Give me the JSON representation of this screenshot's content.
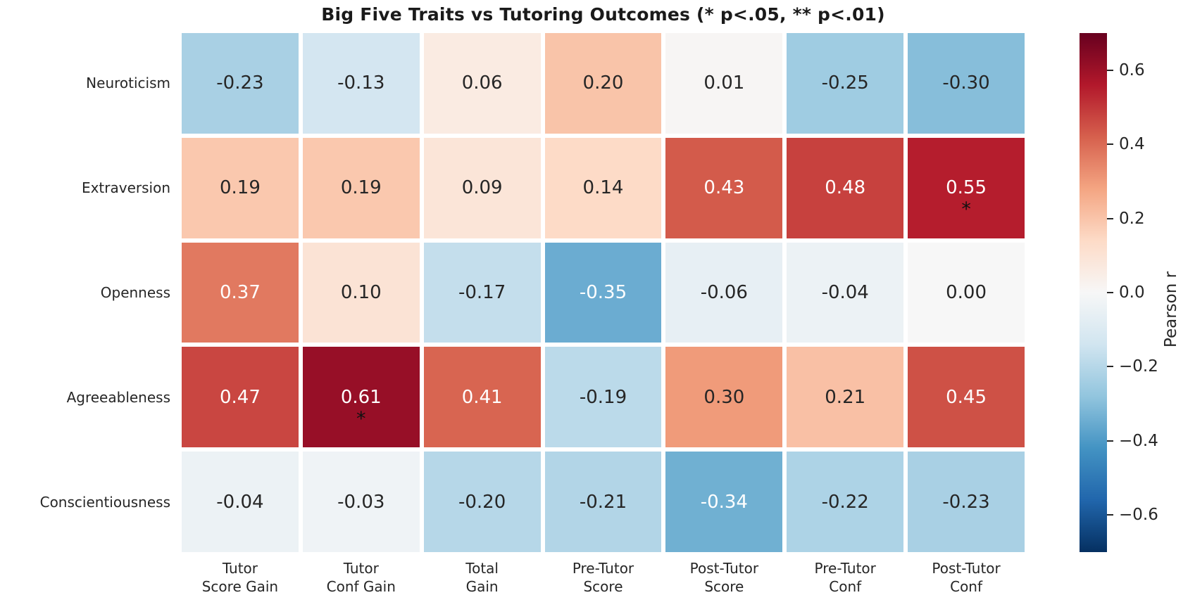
{
  "title": "Big Five Traits vs Tutoring Outcomes (* p<.05, ** p<.01)",
  "colors": {
    "background": "#ffffff",
    "text": "#262626",
    "title_text": "#1a1a1a",
    "annotation_dark": "#262626",
    "annotation_light": "#ffffff",
    "significance_marker": "#111111",
    "tick_mark": "#262626"
  },
  "chart_data": {
    "type": "heatmap",
    "title": "Big Five Traits vs Tutoring Outcomes (* p<.05, ** p<.01)",
    "rows": [
      "Neuroticism",
      "Extraversion",
      "Openness",
      "Agreeableness",
      "Conscientiousness"
    ],
    "columns": [
      "Tutor\nScore Gain",
      "Tutor\nConf Gain",
      "Total\nGain",
      "Pre-Tutor\nScore",
      "Post-Tutor\nScore",
      "Pre-Tutor\nConf",
      "Post-Tutor\nConf"
    ],
    "values": [
      [
        -0.23,
        -0.13,
        0.06,
        0.2,
        0.01,
        -0.25,
        -0.3
      ],
      [
        0.19,
        0.19,
        0.09,
        0.14,
        0.43,
        0.48,
        0.55
      ],
      [
        0.37,
        0.1,
        -0.17,
        -0.35,
        -0.06,
        -0.04,
        0.0
      ],
      [
        0.47,
        0.61,
        0.41,
        -0.19,
        0.3,
        0.21,
        0.45
      ],
      [
        -0.04,
        -0.03,
        -0.2,
        -0.21,
        -0.34,
        -0.22,
        -0.23
      ]
    ],
    "significance": [
      [
        "",
        "",
        "",
        "",
        "",
        "",
        ""
      ],
      [
        "",
        "",
        "",
        "",
        "",
        "",
        "*"
      ],
      [
        "",
        "",
        "",
        "",
        "",
        "",
        ""
      ],
      [
        "",
        "*",
        "",
        "",
        "",
        "",
        ""
      ],
      [
        "",
        "",
        "",
        "",
        "",
        "",
        ""
      ]
    ],
    "colormap": "RdBu_r",
    "colormap_stops": [
      "#053061",
      "#2166ac",
      "#4393c3",
      "#92c5de",
      "#d1e5f0",
      "#f7f7f7",
      "#fddbc7",
      "#f4a582",
      "#d6604d",
      "#b2182b",
      "#67001f"
    ],
    "vmin": -0.7,
    "vmax": 0.7,
    "grid": false,
    "colorbar": {
      "label": "Pearson r",
      "position": "right",
      "ticks": [
        0.6,
        0.4,
        0.2,
        0.0,
        -0.2,
        -0.4,
        -0.6
      ],
      "tick_labels": [
        "0.6",
        "0.4",
        "0.2",
        "0.0",
        "−0.2",
        "−0.4",
        "−0.6"
      ]
    }
  }
}
